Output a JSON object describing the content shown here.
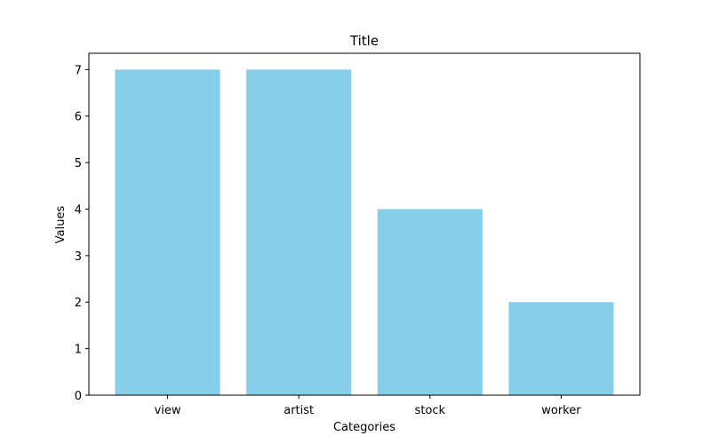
{
  "chart_data": {
    "type": "bar",
    "title": "Title",
    "xlabel": "Categories",
    "ylabel": "Values",
    "categories": [
      "view",
      "artist",
      "stock",
      "worker"
    ],
    "values": [
      7,
      7,
      4,
      2
    ],
    "ylim": [
      0,
      7.35
    ],
    "yticks": [
      0,
      1,
      2,
      3,
      4,
      5,
      6,
      7
    ],
    "grid": false,
    "bar_color": "#87CEEB"
  }
}
